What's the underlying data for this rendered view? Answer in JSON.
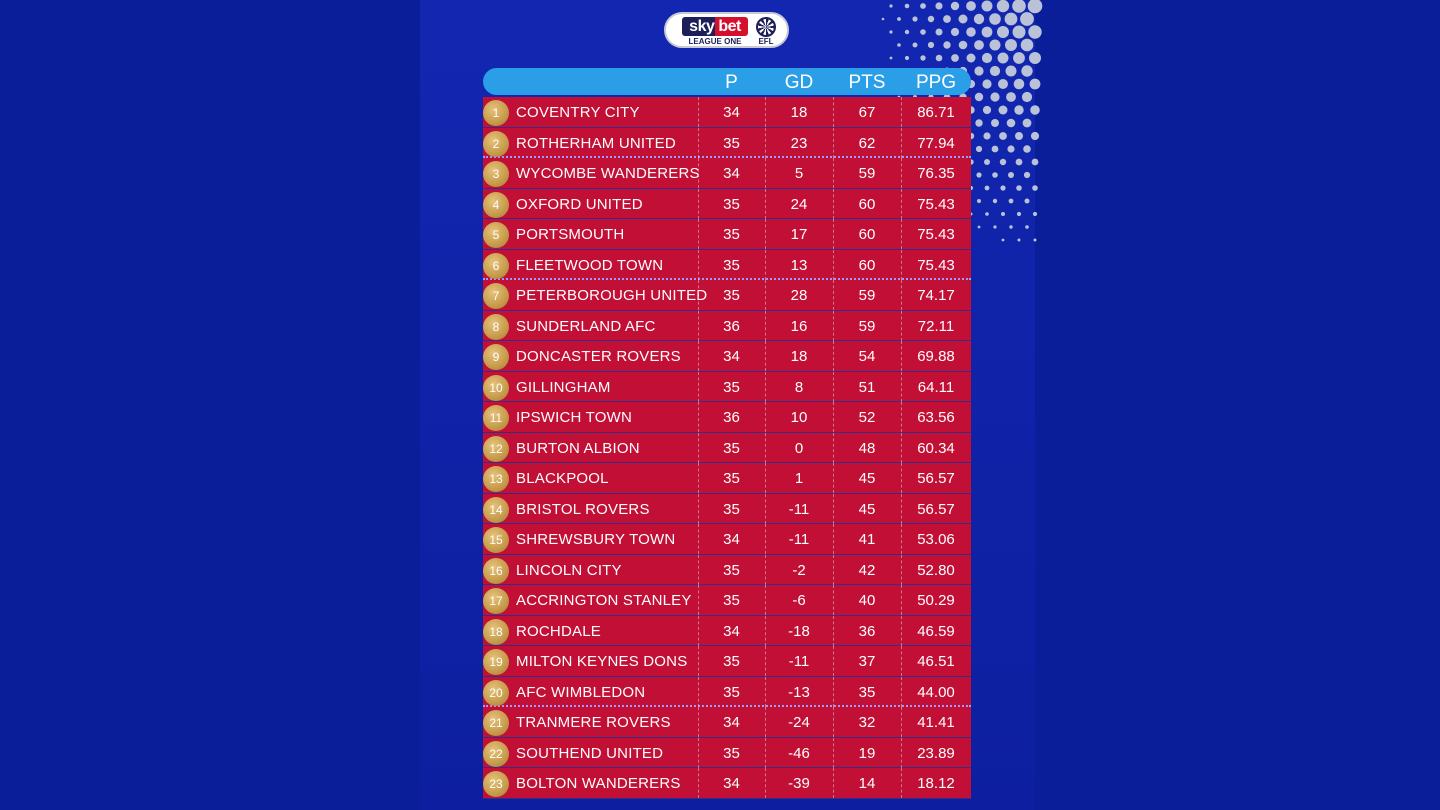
{
  "logo": {
    "brand": "sky bet",
    "subtitle": "LEAGUE ONE",
    "league_mark": "EFL"
  },
  "columns": {
    "p": "P",
    "gd": "GD",
    "pts": "PTS",
    "ppg": "PPG"
  },
  "rows": [
    {
      "pos": "1",
      "team": "COVENTRY CITY",
      "p": "34",
      "gd": "18",
      "pts": "67",
      "ppg": "86.71"
    },
    {
      "pos": "2",
      "team": "ROTHERHAM UNITED",
      "p": "35",
      "gd": "23",
      "pts": "62",
      "ppg": "77.94"
    },
    {
      "pos": "3",
      "team": "WYCOMBE WANDERERS",
      "p": "34",
      "gd": "5",
      "pts": "59",
      "ppg": "76.35"
    },
    {
      "pos": "4",
      "team": "OXFORD UNITED",
      "p": "35",
      "gd": "24",
      "pts": "60",
      "ppg": "75.43"
    },
    {
      "pos": "5",
      "team": "PORTSMOUTH",
      "p": "35",
      "gd": "17",
      "pts": "60",
      "ppg": "75.43"
    },
    {
      "pos": "6",
      "team": "FLEETWOOD TOWN",
      "p": "35",
      "gd": "13",
      "pts": "60",
      "ppg": "75.43"
    },
    {
      "pos": "7",
      "team": "PETERBOROUGH UNITED",
      "p": "35",
      "gd": "28",
      "pts": "59",
      "ppg": "74.17"
    },
    {
      "pos": "8",
      "team": "SUNDERLAND AFC",
      "p": "36",
      "gd": "16",
      "pts": "59",
      "ppg": "72.11"
    },
    {
      "pos": "9",
      "team": "DONCASTER ROVERS",
      "p": "34",
      "gd": "18",
      "pts": "54",
      "ppg": "69.88"
    },
    {
      "pos": "10",
      "team": "GILLINGHAM",
      "p": "35",
      "gd": "8",
      "pts": "51",
      "ppg": "64.11"
    },
    {
      "pos": "11",
      "team": "IPSWICH TOWN",
      "p": "36",
      "gd": "10",
      "pts": "52",
      "ppg": "63.56"
    },
    {
      "pos": "12",
      "team": "BURTON ALBION",
      "p": "35",
      "gd": "0",
      "pts": "48",
      "ppg": "60.34"
    },
    {
      "pos": "13",
      "team": "BLACKPOOL",
      "p": "35",
      "gd": "1",
      "pts": "45",
      "ppg": "56.57"
    },
    {
      "pos": "14",
      "team": "BRISTOL ROVERS",
      "p": "35",
      "gd": "-11",
      "pts": "45",
      "ppg": "56.57"
    },
    {
      "pos": "15",
      "team": "SHREWSBURY TOWN",
      "p": "34",
      "gd": "-11",
      "pts": "41",
      "ppg": "53.06"
    },
    {
      "pos": "16",
      "team": "LINCOLN CITY",
      "p": "35",
      "gd": "-2",
      "pts": "42",
      "ppg": "52.80"
    },
    {
      "pos": "17",
      "team": "ACCRINGTON STANLEY",
      "p": "35",
      "gd": "-6",
      "pts": "40",
      "ppg": "50.29"
    },
    {
      "pos": "18",
      "team": "ROCHDALE",
      "p": "34",
      "gd": "-18",
      "pts": "36",
      "ppg": "46.59"
    },
    {
      "pos": "19",
      "team": "MILTON KEYNES DONS",
      "p": "35",
      "gd": "-11",
      "pts": "37",
      "ppg": "46.51"
    },
    {
      "pos": "20",
      "team": "AFC WIMBLEDON",
      "p": "35",
      "gd": "-13",
      "pts": "35",
      "ppg": "44.00"
    },
    {
      "pos": "21",
      "team": "TRANMERE ROVERS",
      "p": "34",
      "gd": "-24",
      "pts": "32",
      "ppg": "41.41"
    },
    {
      "pos": "22",
      "team": "SOUTHEND UNITED",
      "p": "35",
      "gd": "-46",
      "pts": "19",
      "ppg": "23.89"
    },
    {
      "pos": "23",
      "team": "BOLTON WANDERERS",
      "p": "34",
      "gd": "-39",
      "pts": "14",
      "ppg": "18.12"
    }
  ],
  "zone_separators_after_positions": [
    "2",
    "6",
    "20"
  ],
  "colors": {
    "background": "#0a1e99",
    "header": "#2a9fe8",
    "row": "#c20f35",
    "badge": "#c69a4a"
  }
}
